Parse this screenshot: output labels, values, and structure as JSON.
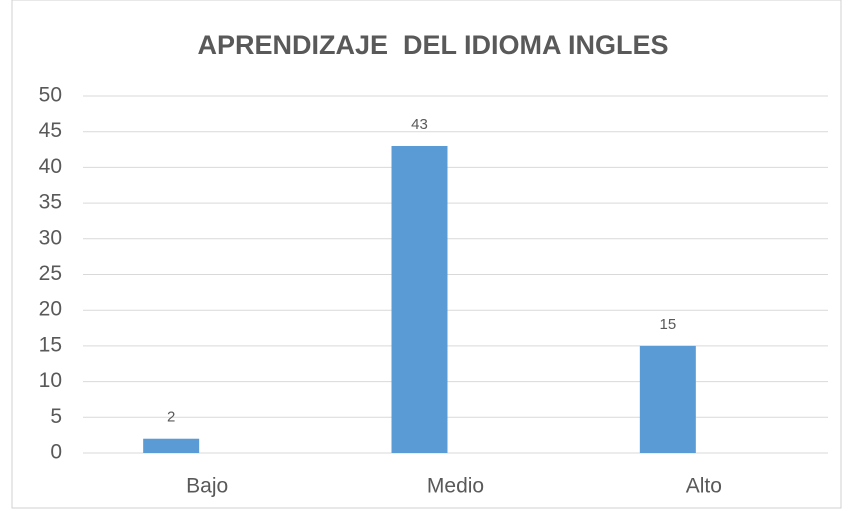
{
  "chart_data": {
    "type": "bar",
    "title": "APRENDIZAJE  DEL IDIOMA INGLES",
    "categories": [
      "Bajo",
      "Medio",
      "Alto"
    ],
    "values": [
      2,
      43,
      15
    ],
    "color": "#5b9bd5",
    "ylim": [
      0,
      50
    ],
    "yticks": [
      0,
      5,
      10,
      15,
      20,
      25,
      30,
      35,
      40,
      45,
      50
    ],
    "grid": true
  }
}
